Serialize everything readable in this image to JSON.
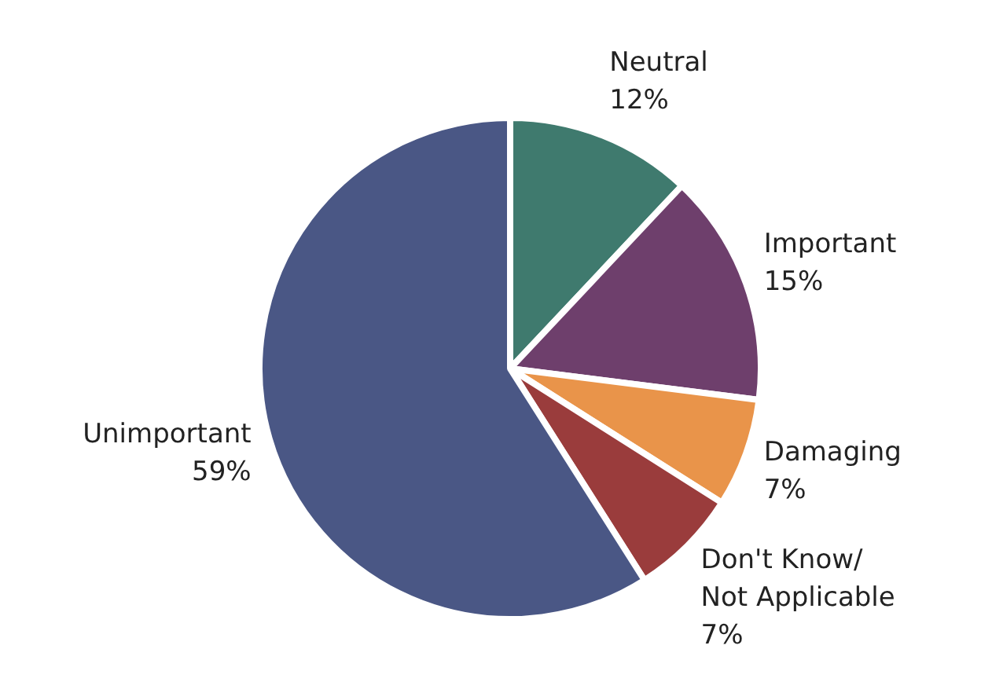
{
  "chart_data": {
    "type": "pie",
    "categories": [
      "Neutral",
      "Important",
      "Damaging",
      "Don't Know/ Not Applicable",
      "Unimportant"
    ],
    "values": [
      12,
      15,
      7,
      7,
      59
    ],
    "colors": [
      "#3f7a6e",
      "#6e3f6c",
      "#e9944a",
      "#9a3c3c",
      "#4a5785"
    ],
    "value_labels": [
      "12%",
      "15%",
      "7%",
      "7%",
      "59%"
    ],
    "legend": false
  }
}
